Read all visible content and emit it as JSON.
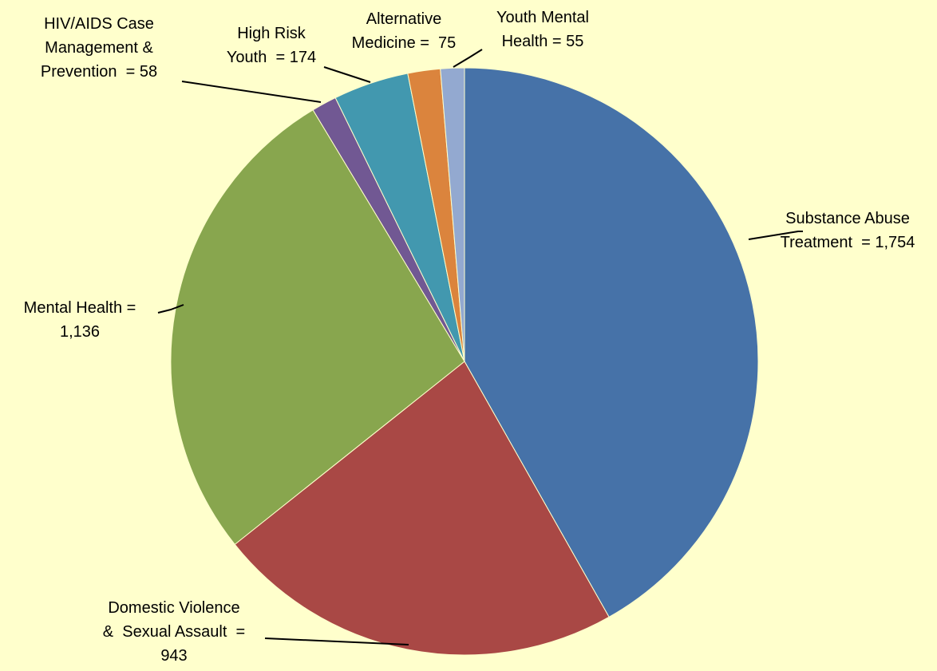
{
  "chart_data": {
    "type": "pie",
    "start": "12 o'clock",
    "direction": "clockwise",
    "slices": [
      {
        "key": "substance",
        "label_lines": [
          "Substance Abuse",
          "Treatment  = 1,754"
        ],
        "value": 1754,
        "color": "#4672A8"
      },
      {
        "key": "domestic",
        "label_lines": [
          "Domestic Violence",
          "&  Sexual Assault  =",
          "943"
        ],
        "value": 943,
        "color": "#A94845"
      },
      {
        "key": "mental",
        "label_lines": [
          "Mental Health =",
          "1,136"
        ],
        "value": 1136,
        "color": "#88A64E"
      },
      {
        "key": "hiv",
        "label_lines": [
          "HIV/AIDS Case",
          "Management &",
          "Prevention  = 58"
        ],
        "value": 58,
        "color": "#715893"
      },
      {
        "key": "highrisk",
        "label_lines": [
          "High Risk",
          "Youth  = 174"
        ],
        "value": 174,
        "color": "#4298AF"
      },
      {
        "key": "altmed",
        "label_lines": [
          "Alternative",
          "Medicine =  75"
        ],
        "value": 75,
        "color": "#DB843D"
      },
      {
        "key": "youthmh",
        "label_lines": [
          "Youth Mental",
          "Health = 55"
        ],
        "value": 55,
        "color": "#93A9D0"
      }
    ]
  }
}
